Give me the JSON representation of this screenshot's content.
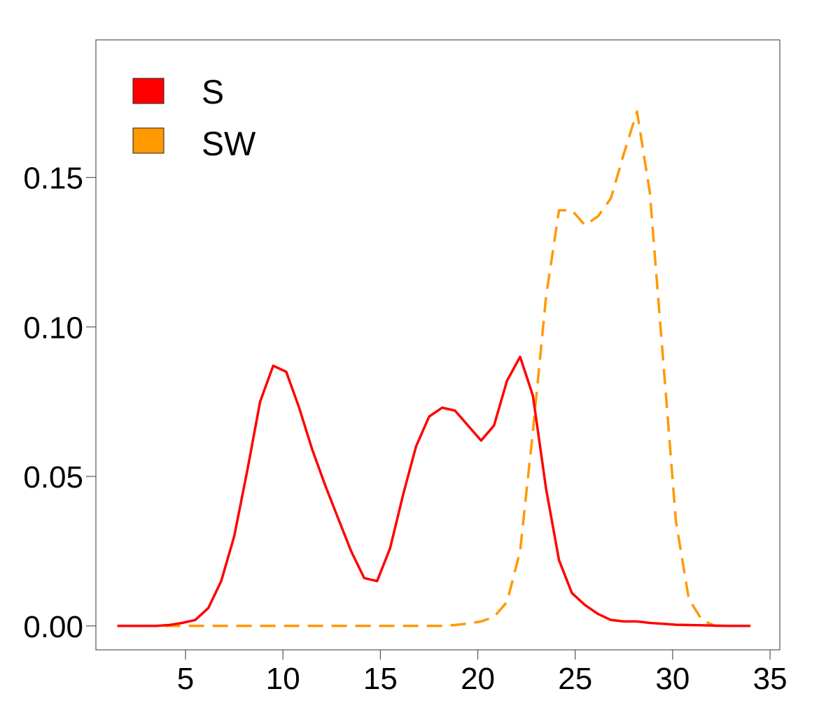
{
  "chart_data": {
    "type": "line",
    "title": "",
    "xlabel": "",
    "ylabel": "",
    "xlim": [
      0.4,
      35.5
    ],
    "ylim": [
      -0.008,
      0.196
    ],
    "x_ticks": [
      5,
      10,
      15,
      20,
      25,
      30,
      35
    ],
    "x_tick_labels": [
      "5",
      "10",
      "15",
      "20",
      "25",
      "30",
      "35"
    ],
    "y_ticks": [
      0.0,
      0.05,
      0.1,
      0.15
    ],
    "y_tick_labels": [
      "0.00",
      "0.05",
      "0.10",
      "0.15"
    ],
    "grid": false,
    "legend": {
      "position": "top-left",
      "entries": [
        {
          "label": "S",
          "color": "#ff0000"
        },
        {
          "label": "SW",
          "color": "#ff9900"
        }
      ]
    },
    "x": [
      1.5,
      2.17,
      2.83,
      3.5,
      4.17,
      4.83,
      5.5,
      6.17,
      6.83,
      7.5,
      8.17,
      8.83,
      9.5,
      10.17,
      10.83,
      11.5,
      12.17,
      12.83,
      13.5,
      14.17,
      14.83,
      15.5,
      16.17,
      16.83,
      17.5,
      18.17,
      18.83,
      19.5,
      20.17,
      20.83,
      21.5,
      22.17,
      22.83,
      23.5,
      24.17,
      24.83,
      25.5,
      26.17,
      26.83,
      27.5,
      28.17,
      28.83,
      29.5,
      30.17,
      30.83,
      31.5,
      32.17,
      32.83,
      33.5,
      34.0
    ],
    "series": [
      {
        "name": "S",
        "color": "#ff0000",
        "style": "solid",
        "values": [
          0.0,
          0.0,
          0.0,
          0.0,
          0.0003,
          0.001,
          0.002,
          0.006,
          0.015,
          0.03,
          0.052,
          0.075,
          0.087,
          0.085,
          0.073,
          0.059,
          0.047,
          0.036,
          0.025,
          0.016,
          0.015,
          0.026,
          0.044,
          0.06,
          0.07,
          0.073,
          0.072,
          0.067,
          0.062,
          0.067,
          0.082,
          0.09,
          0.077,
          0.046,
          0.022,
          0.011,
          0.007,
          0.004,
          0.002,
          0.0015,
          0.0015,
          0.001,
          0.0007,
          0.0004,
          0.0003,
          0.0002,
          0.0001,
          0.0,
          0.0,
          0.0
        ]
      },
      {
        "name": "SW",
        "color": "#ff9900",
        "style": "dashed",
        "values": [
          0.0,
          0.0,
          0.0,
          0.0,
          0.0,
          0.0,
          0.0,
          0.0,
          0.0,
          0.0,
          0.0,
          0.0,
          0.0,
          0.0,
          0.0,
          0.0,
          0.0,
          0.0,
          0.0,
          0.0,
          0.0,
          0.0,
          0.0,
          0.0,
          0.0,
          0.0,
          0.0003,
          0.0008,
          0.0015,
          0.003,
          0.008,
          0.025,
          0.065,
          0.11,
          0.139,
          0.139,
          0.134,
          0.137,
          0.143,
          0.158,
          0.172,
          0.145,
          0.09,
          0.035,
          0.009,
          0.002,
          0.0,
          0.0,
          0.0,
          0.0
        ]
      }
    ]
  }
}
